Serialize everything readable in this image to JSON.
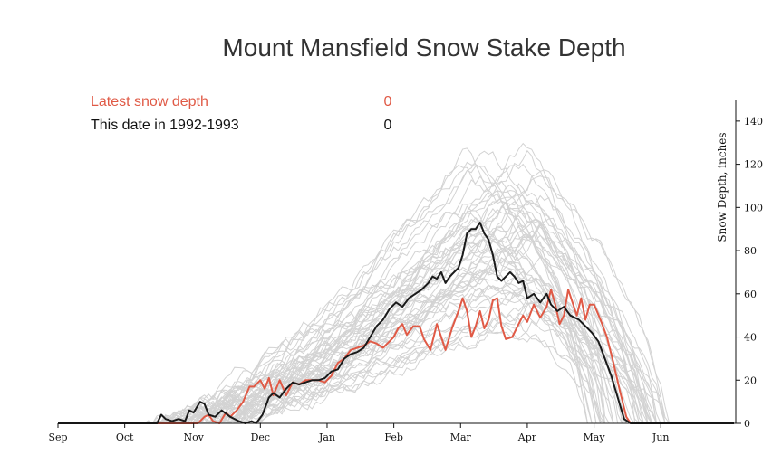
{
  "chart_data": {
    "type": "line",
    "title": "Mount Mansfield Snow Stake Depth",
    "ylabel": "Snow Depth, inches",
    "xlabel": "",
    "ylim": [
      0,
      150
    ],
    "y_ticks": [
      0,
      20,
      40,
      60,
      80,
      100,
      120,
      140
    ],
    "y_axis_position": "right",
    "x_ticks": [
      "Sep",
      "Oct",
      "Nov",
      "Dec",
      "Jan",
      "Feb",
      "Mar",
      "Apr",
      "May",
      "Jun"
    ],
    "x_tick_days": [
      0,
      31,
      63,
      94,
      125,
      156,
      187,
      218,
      249,
      280
    ],
    "xlim_days": [
      0,
      314
    ],
    "legend": {
      "placement": "top-left",
      "latest_label": "Latest snow depth",
      "latest_value": "0",
      "date_label": "This date in 1992-1993",
      "date_value": "0"
    },
    "colors": {
      "latest": "#e05a46",
      "season": "#1a1a1a",
      "history": "#d3d3d3"
    },
    "series": [
      {
        "role": "latest",
        "points": [
          [
            0,
            0
          ],
          [
            65,
            0
          ],
          [
            68,
            3
          ],
          [
            70,
            4
          ],
          [
            72,
            1
          ],
          [
            75,
            0
          ],
          [
            78,
            5
          ],
          [
            80,
            3
          ],
          [
            83,
            6
          ],
          [
            86,
            10
          ],
          [
            89,
            17
          ],
          [
            91,
            17
          ],
          [
            94,
            20
          ],
          [
            96,
            16
          ],
          [
            98,
            21
          ],
          [
            100,
            13
          ],
          [
            103,
            20
          ],
          [
            106,
            13
          ],
          [
            109,
            19
          ],
          [
            112,
            18
          ],
          [
            115,
            20
          ],
          [
            118,
            20
          ],
          [
            121,
            20
          ],
          [
            124,
            19
          ],
          [
            127,
            22
          ],
          [
            130,
            28
          ],
          [
            133,
            30
          ],
          [
            136,
            34
          ],
          [
            139,
            35
          ],
          [
            142,
            36
          ],
          [
            145,
            38
          ],
          [
            148,
            37
          ],
          [
            151,
            35
          ],
          [
            154,
            38
          ],
          [
            156,
            40
          ],
          [
            158,
            44
          ],
          [
            160,
            46
          ],
          [
            162,
            41
          ],
          [
            165,
            45
          ],
          [
            168,
            45
          ],
          [
            170,
            39
          ],
          [
            173,
            34
          ],
          [
            176,
            46
          ],
          [
            178,
            40
          ],
          [
            180,
            34
          ],
          [
            183,
            44
          ],
          [
            186,
            52
          ],
          [
            188,
            58
          ],
          [
            190,
            52
          ],
          [
            192,
            40
          ],
          [
            194,
            45
          ],
          [
            196,
            52
          ],
          [
            198,
            44
          ],
          [
            200,
            48
          ],
          [
            202,
            57
          ],
          [
            204,
            58
          ],
          [
            206,
            45
          ],
          [
            208,
            39
          ],
          [
            211,
            40
          ],
          [
            214,
            46
          ],
          [
            216,
            50
          ],
          [
            218,
            47
          ],
          [
            221,
            55
          ],
          [
            224,
            49
          ],
          [
            227,
            54
          ],
          [
            229,
            62
          ],
          [
            231,
            55
          ],
          [
            233,
            46
          ],
          [
            235,
            50
          ],
          [
            237,
            62
          ],
          [
            239,
            56
          ],
          [
            241,
            50
          ],
          [
            243,
            58
          ],
          [
            245,
            48
          ],
          [
            247,
            55
          ],
          [
            249,
            55
          ],
          [
            252,
            48
          ],
          [
            255,
            40
          ],
          [
            258,
            28
          ],
          [
            261,
            15
          ],
          [
            264,
            3
          ],
          [
            266,
            0
          ],
          [
            314,
            0
          ]
        ]
      },
      {
        "role": "this season",
        "points": [
          [
            0,
            0
          ],
          [
            46,
            0
          ],
          [
            48,
            4
          ],
          [
            50,
            2
          ],
          [
            53,
            1
          ],
          [
            56,
            2
          ],
          [
            59,
            1
          ],
          [
            61,
            6
          ],
          [
            63,
            5
          ],
          [
            66,
            10
          ],
          [
            68,
            9
          ],
          [
            70,
            4
          ],
          [
            73,
            3
          ],
          [
            76,
            6
          ],
          [
            80,
            3
          ],
          [
            84,
            1
          ],
          [
            87,
            0
          ],
          [
            90,
            1
          ],
          [
            92,
            0
          ],
          [
            95,
            4
          ],
          [
            98,
            12
          ],
          [
            100,
            14
          ],
          [
            103,
            12
          ],
          [
            106,
            16
          ],
          [
            109,
            19
          ],
          [
            112,
            18
          ],
          [
            115,
            19
          ],
          [
            118,
            20
          ],
          [
            121,
            20
          ],
          [
            124,
            21
          ],
          [
            127,
            24
          ],
          [
            130,
            25
          ],
          [
            133,
            30
          ],
          [
            136,
            32
          ],
          [
            139,
            33
          ],
          [
            142,
            35
          ],
          [
            145,
            40
          ],
          [
            148,
            45
          ],
          [
            151,
            48
          ],
          [
            154,
            53
          ],
          [
            157,
            56
          ],
          [
            160,
            54
          ],
          [
            163,
            58
          ],
          [
            166,
            60
          ],
          [
            169,
            62
          ],
          [
            172,
            65
          ],
          [
            174,
            68
          ],
          [
            176,
            67
          ],
          [
            178,
            70
          ],
          [
            180,
            65
          ],
          [
            182,
            68
          ],
          [
            184,
            70
          ],
          [
            186,
            72
          ],
          [
            188,
            78
          ],
          [
            190,
            88
          ],
          [
            192,
            90
          ],
          [
            194,
            90
          ],
          [
            196,
            93
          ],
          [
            198,
            88
          ],
          [
            200,
            85
          ],
          [
            202,
            78
          ],
          [
            204,
            68
          ],
          [
            206,
            66
          ],
          [
            208,
            68
          ],
          [
            210,
            70
          ],
          [
            212,
            68
          ],
          [
            214,
            65
          ],
          [
            216,
            66
          ],
          [
            218,
            58
          ],
          [
            221,
            60
          ],
          [
            224,
            56
          ],
          [
            227,
            60
          ],
          [
            229,
            55
          ],
          [
            232,
            52
          ],
          [
            235,
            54
          ],
          [
            238,
            50
          ],
          [
            242,
            48
          ],
          [
            245,
            45
          ],
          [
            248,
            42
          ],
          [
            251,
            38
          ],
          [
            254,
            30
          ],
          [
            257,
            22
          ],
          [
            260,
            12
          ],
          [
            263,
            2
          ],
          [
            266,
            0
          ],
          [
            314,
            0
          ]
        ]
      }
    ],
    "history_years": 55
  }
}
